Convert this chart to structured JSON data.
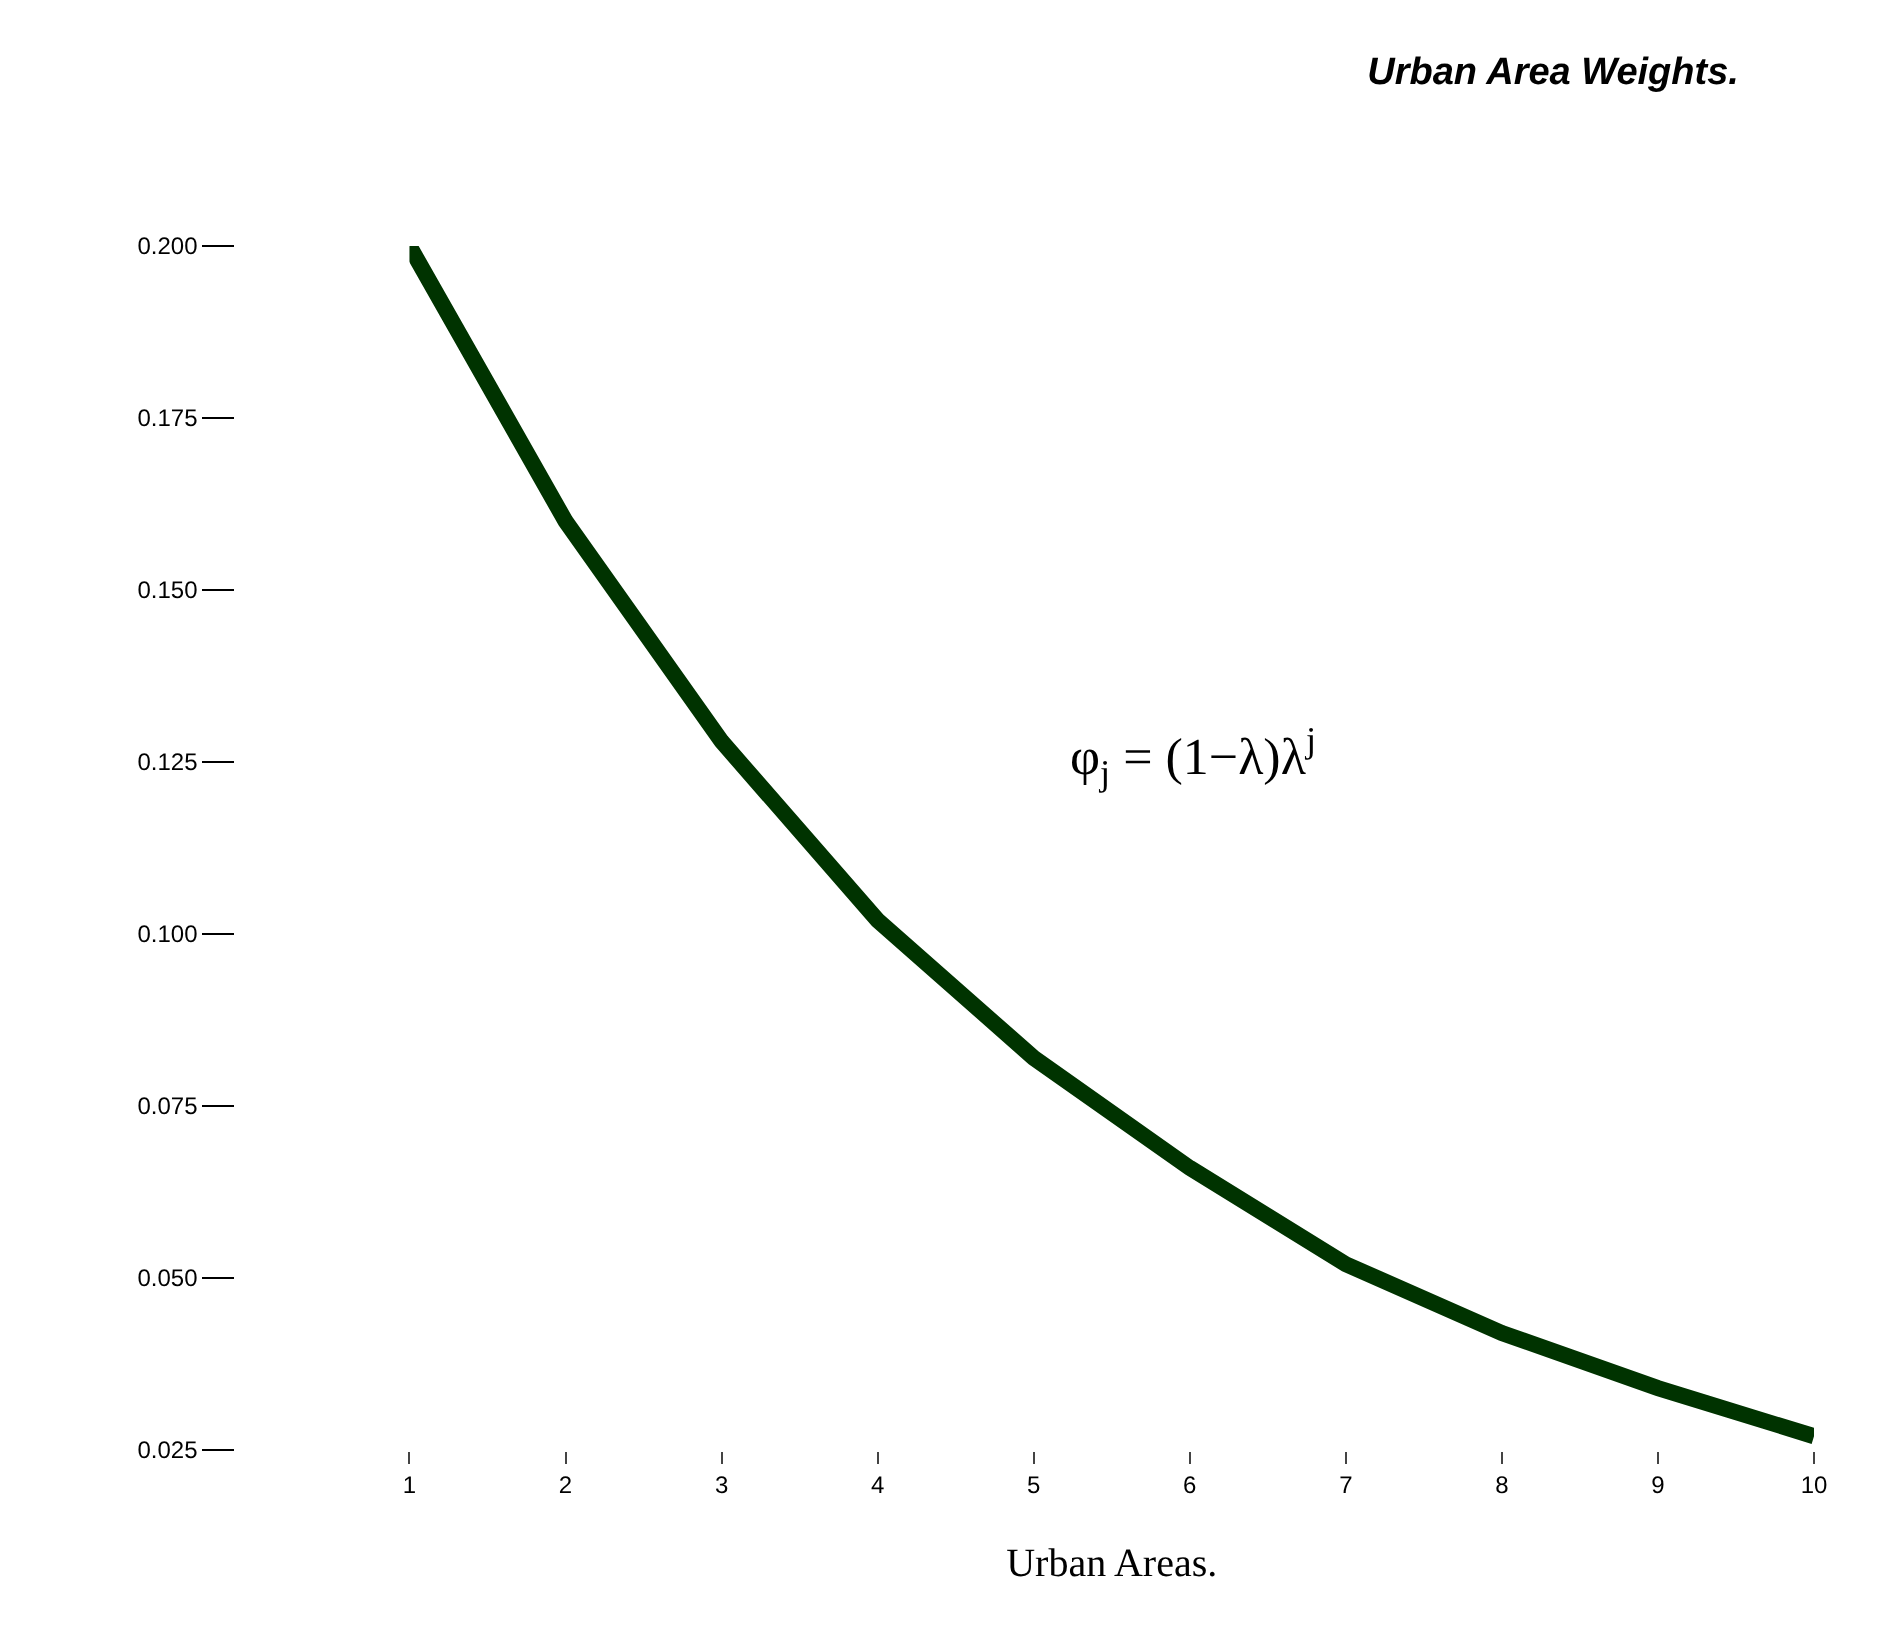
{
  "chart_data": {
    "type": "line",
    "title": "Urban Area Weights.",
    "xlabel": "Urban Areas.",
    "annotations": [
      "φ$_{j}$ = (1−λ)λ$^{j}$"
    ],
    "x": [
      1,
      2,
      3,
      4,
      5,
      6,
      7,
      8,
      9,
      10
    ],
    "series": [
      {
        "color": "#003300",
        "values": [
          0.2,
          0.16,
          0.128,
          0.102,
          0.082,
          0.066,
          0.052,
          0.042,
          0.034,
          0.027
        ]
      }
    ],
    "xlim": [
      1,
      10
    ],
    "xticks": [
      1,
      2,
      3,
      4,
      5,
      6,
      7,
      8,
      9,
      10
    ],
    "ylim": [
      0.025,
      0.2
    ],
    "yticks": [
      {
        "value": 0.2,
        "label": "0.200"
      },
      {
        "value": 0.175,
        "label": "0.175"
      },
      {
        "value": 0.15,
        "label": "0.150"
      },
      {
        "value": 0.125,
        "label": "0.125"
      },
      {
        "value": 0.1,
        "label": "0.100"
      },
      {
        "value": 0.075,
        "label": "0.075"
      },
      {
        "value": 0.05,
        "label": "0.050"
      },
      {
        "value": 0.025,
        "label": "0.025"
      }
    ],
    "marker": "none",
    "line_style": "solid"
  }
}
